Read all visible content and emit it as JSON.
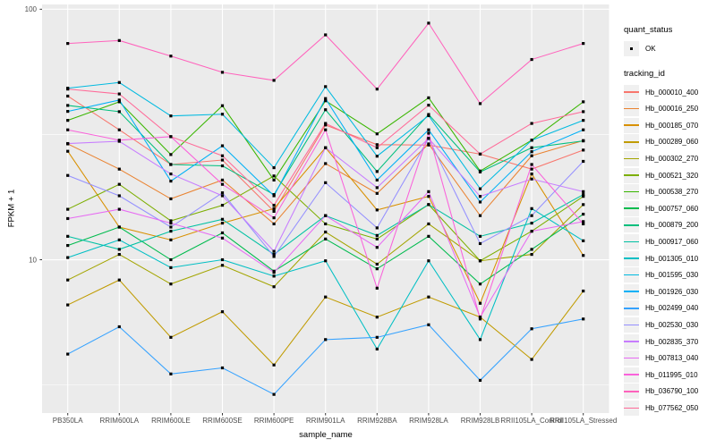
{
  "figure": {
    "background": "#FFFFFF",
    "panel_color": "#EBEBEB",
    "grid_major_color": "#FFFFFF",
    "grid_minor_color": "#FFFFFF",
    "point_color": "#000000",
    "tick_mark_color": "#333333",
    "axis_text_color": "#4D4D4D"
  },
  "legend": {
    "quant_title": "quant_status",
    "quant_items": [
      {
        "label": "OK",
        "glyph": "black-point"
      }
    ],
    "tracking_title": "tracking_id",
    "key_fill": "#F0F0F0"
  },
  "chart_data": {
    "type": "line",
    "title": "",
    "xlabel": "sample_name",
    "ylabel": "FPKM + 1",
    "y_scale": "log10",
    "y_ticks": [
      {
        "value": 100,
        "label": "100"
      },
      {
        "value": 10,
        "label": "10"
      }
    ],
    "y_minor_breaks": [
      31.62,
      3.162
    ],
    "ylim_log10": [
      0.388,
      2.019
    ],
    "grid": true,
    "legend_position": "right",
    "quant_status_all": "OK",
    "categories": [
      "PB350LA",
      "RRIM600LA",
      "RRIM600LE",
      "RRIM600SE",
      "RRIM600PE",
      "RRIM901LA",
      "RRIM928BA",
      "RRIM928LA",
      "RRIM928LB",
      "RRII105LA_Control",
      "RRII105LA_Stressed"
    ],
    "series": [
      {
        "name": "Hb_000010_400",
        "color": "#F8766D",
        "values": [
          45,
          33,
          24,
          25,
          15.6,
          34.5,
          28.8,
          28.7,
          26.4,
          23,
          27.4
        ]
      },
      {
        "name": "Hb_000016_250",
        "color": "#EA8331",
        "values": [
          29,
          23,
          17.5,
          20.8,
          13.9,
          24.2,
          18.4,
          29,
          15,
          26,
          29.9
        ]
      },
      {
        "name": "Hb_000185_070",
        "color": "#D89000",
        "values": [
          27.1,
          13.5,
          12,
          14,
          16,
          28,
          15.8,
          17.9,
          6.7,
          22,
          10.4
        ]
      },
      {
        "name": "Hb_000289_060",
        "color": "#C09B00",
        "values": [
          6.6,
          8.3,
          4.9,
          6.2,
          3.8,
          7.1,
          5.9,
          7.1,
          5.9,
          4.0,
          7.5
        ]
      },
      {
        "name": "Hb_000302_270",
        "color": "#A3A500",
        "values": [
          8.3,
          10.5,
          8.0,
          9.5,
          7.8,
          12.9,
          9.6,
          13.9,
          9.9,
          10.5,
          16.6
        ]
      },
      {
        "name": "Hb_000521_320",
        "color": "#7CAE00",
        "values": [
          15.9,
          20,
          14.3,
          16.5,
          21.6,
          13.9,
          12.1,
          16.6,
          9.9,
          13,
          17.9
        ]
      },
      {
        "name": "Hb_000538_270",
        "color": "#39B600",
        "values": [
          36,
          42.7,
          26.3,
          41.2,
          20.8,
          43.1,
          31.8,
          44.3,
          22.6,
          30,
          42.7
        ]
      },
      {
        "name": "Hb_000757_060",
        "color": "#00BB4E",
        "values": [
          11.4,
          13.5,
          10,
          12.8,
          9.0,
          12.1,
          9.2,
          12.4,
          8.0,
          11,
          15.2
        ]
      },
      {
        "name": "Hb_000879_200",
        "color": "#00BF7D",
        "values": [
          41.3,
          39,
          24,
          23.7,
          18.2,
          39.7,
          22.5,
          38,
          22.4,
          28,
          29.8
        ]
      },
      {
        "name": "Hb_000917_060",
        "color": "#00C1A3",
        "values": [
          12.4,
          11,
          13,
          14.5,
          10.5,
          15,
          12.5,
          16.6,
          12.4,
          14,
          18.2
        ]
      },
      {
        "name": "Hb_001305_010",
        "color": "#00BFC4",
        "values": [
          10.2,
          12,
          9.3,
          10,
          8.6,
          9.9,
          4.4,
          9.9,
          4.8,
          16,
          11.9
        ]
      },
      {
        "name": "Hb_001595_030",
        "color": "#00BAE0",
        "values": [
          48.4,
          51,
          37.5,
          38.1,
          23.3,
          49.1,
          25.9,
          37.6,
          19.2,
          30,
          36
        ]
      },
      {
        "name": "Hb_001926_030",
        "color": "#00B0F6",
        "values": [
          39.1,
          43.4,
          20.6,
          28.5,
          18,
          44,
          20.8,
          33,
          17,
          27,
          33
        ]
      },
      {
        "name": "Hb_002499_040",
        "color": "#35A2FF",
        "values": [
          4.2,
          5.4,
          3.5,
          3.7,
          2.9,
          4.8,
          4.9,
          5.5,
          3.3,
          5.3,
          5.8
        ]
      },
      {
        "name": "Hb_002530_030",
        "color": "#9590FF",
        "values": [
          21.7,
          18,
          13.5,
          18.5,
          10.3,
          20.3,
          13.4,
          30.5,
          11.6,
          15,
          24.7
        ]
      },
      {
        "name": "Hb_002835_370",
        "color": "#C77CFF",
        "values": [
          29.1,
          29.7,
          22,
          18,
          10.8,
          28,
          19.4,
          30.5,
          17.9,
          21,
          18.7
        ]
      },
      {
        "name": "Hb_007813_040",
        "color": "#E76BF3",
        "values": [
          14.6,
          15.9,
          14,
          12.2,
          8.9,
          15,
          11.2,
          18.7,
          5.9,
          13,
          14.2
        ]
      },
      {
        "name": "Hb_011995_010",
        "color": "#FA62DB",
        "values": [
          33,
          30,
          31,
          20,
          14.7,
          33,
          7.7,
          32,
          5.8,
          24,
          13.9
        ]
      },
      {
        "name": "Hb_036790_100",
        "color": "#FF62BC",
        "values": [
          73,
          75,
          65,
          56,
          52,
          79,
          48,
          88,
          42,
          63,
          73
        ]
      },
      {
        "name": "Hb_077562_050",
        "color": "#FF6A98",
        "values": [
          48,
          45.9,
          31,
          26,
          16.5,
          35,
          28,
          41.4,
          26.4,
          35,
          39
        ]
      }
    ]
  }
}
